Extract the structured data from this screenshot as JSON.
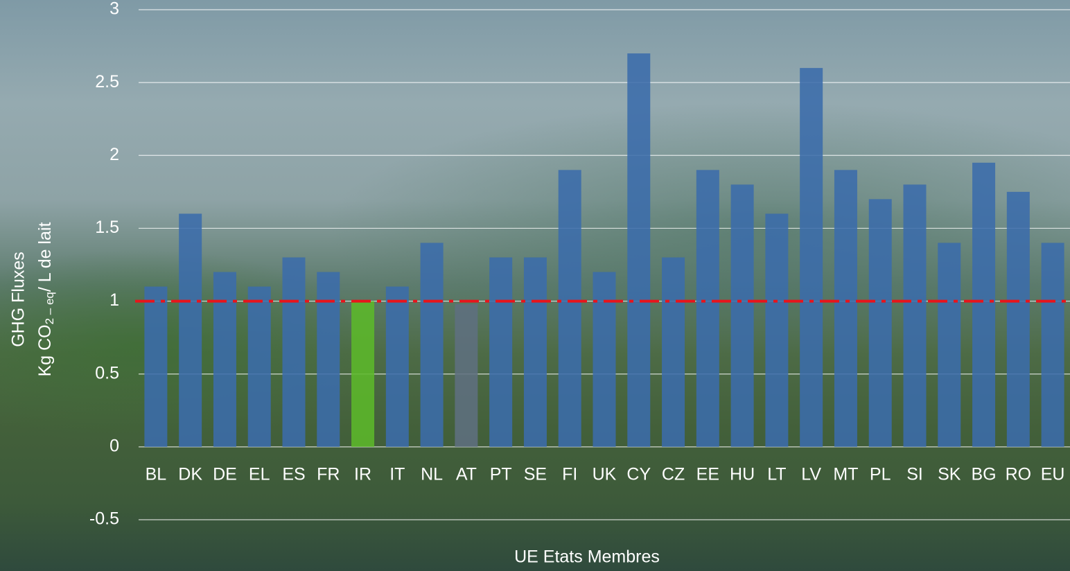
{
  "chart_data": {
    "type": "bar",
    "x_label": "UE Etats Membres",
    "y_label": {
      "line1": "GHG Fluxes",
      "line2": [
        "Kg CO",
        "2",
        " – eq",
        "/ L de lait"
      ]
    },
    "categories": [
      "BL",
      "DK",
      "DE",
      "EL",
      "ES",
      "FR",
      "IR",
      "IT",
      "NL",
      "AT",
      "PT",
      "SE",
      "FI",
      "UK",
      "CY",
      "CZ",
      "EE",
      "HU",
      "LT",
      "LV",
      "MT",
      "PL",
      "SI",
      "SK",
      "BG",
      "RO",
      "EU"
    ],
    "values": [
      1.1,
      1.6,
      1.2,
      1.1,
      1.3,
      1.2,
      1.0,
      1.1,
      1.4,
      0.98,
      1.3,
      1.3,
      1.9,
      1.2,
      2.7,
      1.3,
      1.9,
      1.8,
      1.6,
      2.6,
      1.9,
      1.7,
      1.8,
      1.4,
      1.95,
      1.75,
      1.4
    ],
    "colors": [
      "#3b6cab",
      "#3b6cab",
      "#3b6cab",
      "#3b6cab",
      "#3b6cab",
      "#3b6cab",
      "#5cb82a",
      "#3b6cab",
      "#3b6cab",
      "#5e6f80",
      "#3b6cab",
      "#3b6cab",
      "#3b6cab",
      "#3b6cab",
      "#3b6cab",
      "#3b6cab",
      "#3b6cab",
      "#3b6cab",
      "#3b6cab",
      "#3b6cab",
      "#3b6cab",
      "#3b6cab",
      "#3b6cab",
      "#3b6cab",
      "#3b6cab",
      "#3b6cab",
      "#3b6cab"
    ],
    "ylim": [
      -0.5,
      3
    ],
    "yticks": [
      -0.5,
      0,
      0.5,
      1,
      1.5,
      2,
      2.5,
      3
    ],
    "grid": true,
    "reference_line": {
      "value": 1,
      "color": "#e8141b"
    }
  }
}
